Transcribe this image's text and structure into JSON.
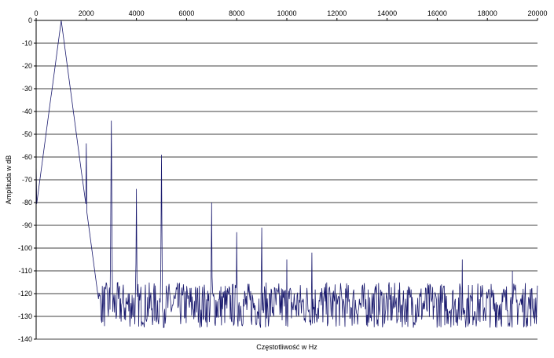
{
  "chart_data": {
    "type": "line",
    "title": "",
    "xlabel": "Częstotliwość w Hz",
    "ylabel": "Amplituda w dB",
    "xlim": [
      0,
      20000
    ],
    "ylim": [
      -140,
      0
    ],
    "x_ticks": [
      "0",
      "2000",
      "4000",
      "6000",
      "8000",
      "10000",
      "12000",
      "14000",
      "16000",
      "18000",
      "20000"
    ],
    "y_ticks": [
      "0",
      "-10",
      "-20",
      "-30",
      "-40",
      "-50",
      "-60",
      "-70",
      "-80",
      "-90",
      "-100",
      "-110",
      "-120",
      "-130",
      "-140"
    ],
    "x_tick_values": [
      0,
      2000,
      4000,
      6000,
      8000,
      10000,
      12000,
      14000,
      16000,
      18000,
      20000
    ],
    "y_tick_values": [
      0,
      -10,
      -20,
      -30,
      -40,
      -50,
      -60,
      -70,
      -80,
      -90,
      -100,
      -110,
      -120,
      -130,
      -140
    ],
    "grid": "horizontal",
    "legend": "none",
    "line_color": "#1a1a6e",
    "series": [
      {
        "peaks": [
          {
            "x": 1000,
            "y": 0
          },
          {
            "x": 2000,
            "y": -54
          },
          {
            "x": 3000,
            "y": -44
          },
          {
            "x": 4000,
            "y": -74
          },
          {
            "x": 5000,
            "y": -59
          },
          {
            "x": 7000,
            "y": -80
          },
          {
            "x": 8000,
            "y": -93
          },
          {
            "x": 9000,
            "y": -91
          },
          {
            "x": 10000,
            "y": -105
          },
          {
            "x": 11000,
            "y": -102
          },
          {
            "x": 17000,
            "y": -105
          },
          {
            "x": 19000,
            "y": -110
          }
        ],
        "noise_floor": -125
      }
    ]
  }
}
